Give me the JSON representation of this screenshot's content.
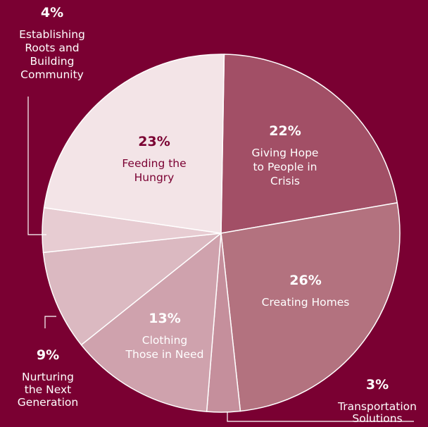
{
  "chart_data": {
    "type": "pie",
    "slices": [
      {
        "name": "Giving Hope to People in Crisis",
        "lines": [
          "Giving Hope",
          "to People in",
          "Crisis"
        ],
        "value": 22,
        "label": "22%",
        "color": "#a24f66"
      },
      {
        "name": "Creating Homes",
        "lines": [
          "Creating Homes"
        ],
        "value": 26,
        "label": "26%",
        "color": "#b3727f"
      },
      {
        "name": "Transportation Solutions",
        "lines": [
          "Transportation",
          "Solutions"
        ],
        "value": 3,
        "label": "3%",
        "color": "#c58f9c"
      },
      {
        "name": "Clothing Those in Need",
        "lines": [
          "Clothing",
          "Those in Need"
        ],
        "value": 13,
        "label": "13%",
        "color": "#cfa2ad"
      },
      {
        "name": "Nurturing the Next Generation",
        "lines": [
          "Nurturing",
          "the Next",
          "Generation"
        ],
        "value": 9,
        "label": "9%",
        "color": "#dbb9c1"
      },
      {
        "name": "Establishing Roots and Building Community",
        "lines": [
          "Establishing",
          "Roots and",
          "Building",
          "Community"
        ],
        "value": 4,
        "label": "4%",
        "color": "#e7ccd2"
      },
      {
        "name": "Feeding the Hungry",
        "lines": [
          "Feeding the",
          "Hungry"
        ],
        "value": 23,
        "label": "23%",
        "color": "#f3e4e7"
      }
    ],
    "background_color": "#7a0032",
    "inside_text_color": "#ffffff",
    "inside_text_color_light_slice": "#7a0032",
    "outside_text_color": "#ffffff",
    "legend": "none"
  }
}
